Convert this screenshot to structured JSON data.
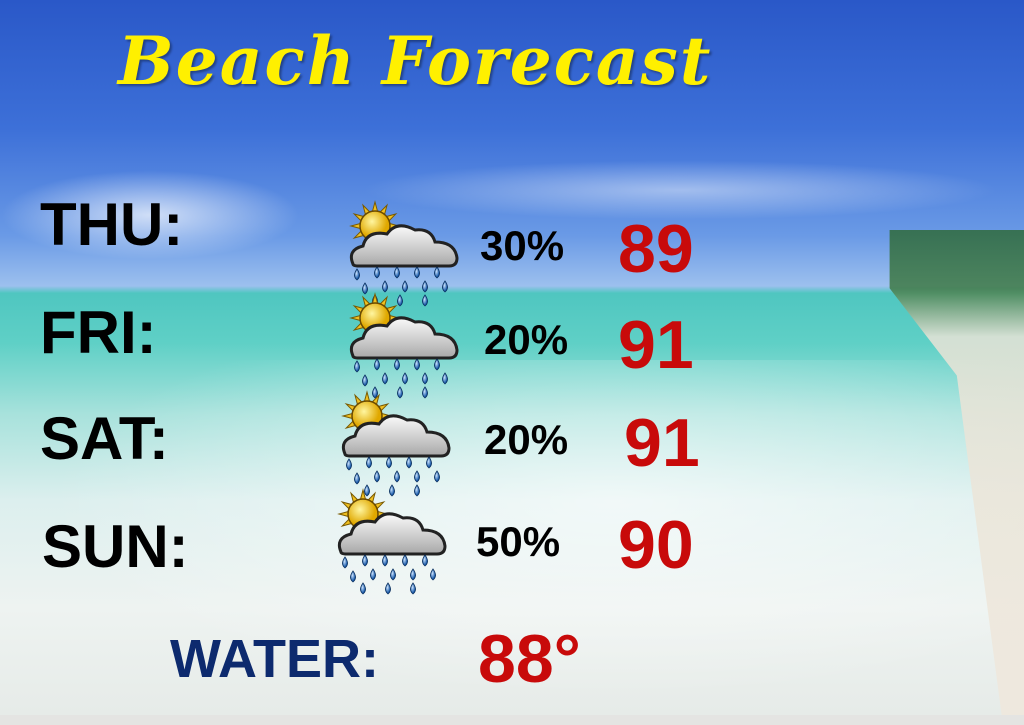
{
  "title": "Beach Forecast",
  "forecast": [
    {
      "day": "THU:",
      "icon": "partly-sunny-rain-icon",
      "chance": "30%",
      "high": "89"
    },
    {
      "day": "FRI:",
      "icon": "partly-sunny-rain-icon",
      "chance": "20%",
      "high": "91"
    },
    {
      "day": "SAT:",
      "icon": "partly-sunny-rain-icon",
      "chance": "20%",
      "high": "91"
    },
    {
      "day": "SUN:",
      "icon": "partly-sunny-rain-icon",
      "chance": "50%",
      "high": "90"
    }
  ],
  "water": {
    "label": "WATER:",
    "temp": "88°"
  },
  "colors": {
    "title": "#fff000",
    "temp": "#c80a0a",
    "water_label": "#0d2a6e"
  }
}
